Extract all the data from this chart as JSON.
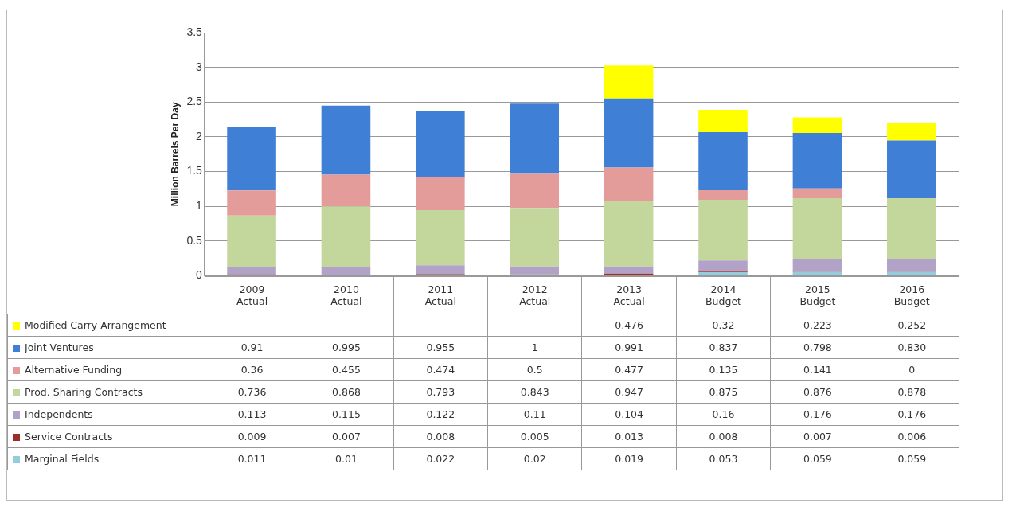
{
  "chart_data": {
    "type": "bar",
    "stacked": true,
    "ylabel": "Million Barrels Per Day",
    "categories": [
      "2009 Actual",
      "2010 Actual",
      "2011 Actual",
      "2012 Actual",
      "2013 Actual",
      "2014 Budget",
      "2015 Budget",
      "2016 Budget"
    ],
    "ylim": [
      0,
      3.5
    ],
    "yticks": [
      0,
      0.5,
      1,
      1.5,
      2,
      2.5,
      3,
      3.5
    ],
    "grid": "y",
    "legend": "bottom",
    "series": [
      {
        "name": "Marginal Fields",
        "color": "#93cddd",
        "values": [
          0.011,
          0.01,
          0.022,
          0.02,
          0.019,
          0.053,
          0.059,
          0.059
        ],
        "value_labels": [
          "0.011",
          "0.01",
          "0.022",
          "0.02",
          "0.019",
          "0.053",
          "0.059",
          "0.059"
        ]
      },
      {
        "name": "Service Contracts",
        "color": "#9b2d2a",
        "values": [
          0.009,
          0.007,
          0.008,
          0.005,
          0.013,
          0.008,
          0.007,
          0.006
        ],
        "value_labels": [
          "0.009",
          "0.007",
          "0.008",
          "0.005",
          "0.013",
          "0.008",
          "0.007",
          "0.006"
        ]
      },
      {
        "name": "Independents",
        "color": "#b3a2c7",
        "values": [
          0.113,
          0.115,
          0.122,
          0.11,
          0.104,
          0.16,
          0.176,
          0.176
        ],
        "value_labels": [
          "0.113",
          "0.115",
          "0.122",
          "0.11",
          "0.104",
          "0.16",
          "0.176",
          "0.176"
        ]
      },
      {
        "name": "Prod. Sharing Contracts",
        "color": "#c3d69b",
        "values": [
          0.736,
          0.868,
          0.793,
          0.843,
          0.947,
          0.875,
          0.876,
          0.878
        ],
        "value_labels": [
          "0.736",
          "0.868",
          "0.793",
          "0.843",
          "0.947",
          "0.875",
          "0.876",
          "0.878"
        ]
      },
      {
        "name": "Alternative Funding",
        "color": "#e39c99",
        "values": [
          0.36,
          0.455,
          0.474,
          0.5,
          0.477,
          0.135,
          0.141,
          0
        ],
        "value_labels": [
          "0.36",
          "0.455",
          "0.474",
          "0.5",
          "0.477",
          "0.135",
          "0.141",
          "0"
        ]
      },
      {
        "name": "Joint Ventures",
        "color": "#3f7fd6",
        "values": [
          0.91,
          0.995,
          0.955,
          1,
          0.991,
          0.837,
          0.798,
          0.83
        ],
        "value_labels": [
          "0.91",
          "0.995",
          "0.955",
          "1",
          "0.991",
          "0.837",
          "0.798",
          "0.830"
        ]
      },
      {
        "name": "Modified Carry Arrangement",
        "color": "#ffff00",
        "values": [
          null,
          null,
          null,
          null,
          0.476,
          0.32,
          0.223,
          0.252
        ],
        "value_labels": [
          null,
          null,
          null,
          null,
          "0.476",
          "0.32",
          "0.223",
          "0.252"
        ]
      }
    ]
  }
}
